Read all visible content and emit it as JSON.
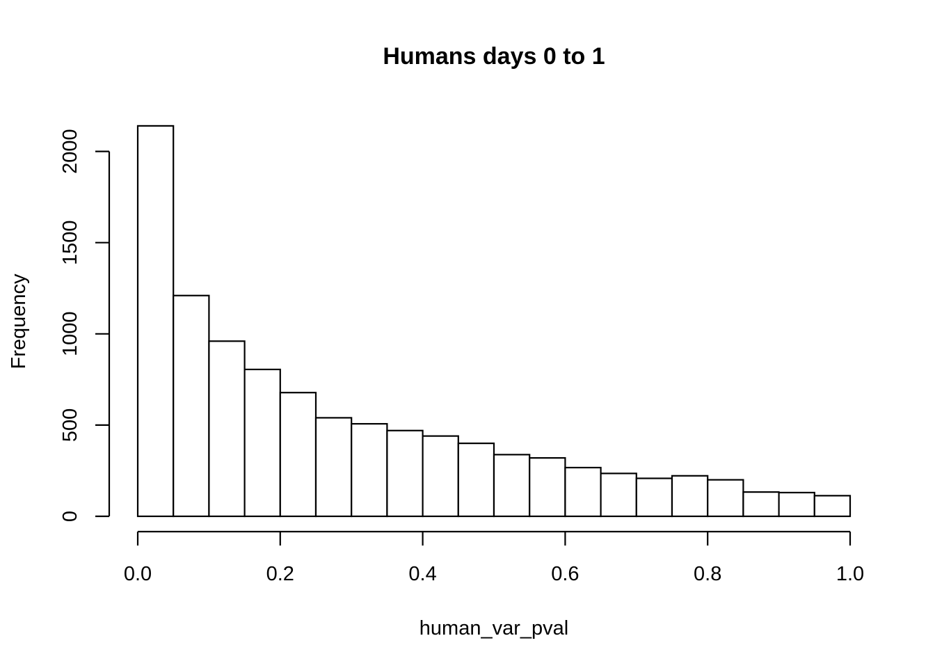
{
  "chart_data": {
    "type": "bar",
    "subtype": "histogram",
    "title": "Humans days 0 to 1",
    "xlabel": "human_var_pval",
    "ylabel": "Frequency",
    "xlim": [
      0,
      1
    ],
    "ylim": [
      0,
      2150
    ],
    "bin_edges": [
      0.0,
      0.05,
      0.1,
      0.15,
      0.2,
      0.25,
      0.3,
      0.35,
      0.4,
      0.45,
      0.5,
      0.55,
      0.6,
      0.65,
      0.7,
      0.75,
      0.8,
      0.85,
      0.9,
      0.95,
      1.0
    ],
    "values": [
      2140,
      1210,
      960,
      805,
      678,
      540,
      507,
      470,
      440,
      400,
      338,
      320,
      267,
      235,
      208,
      222,
      200,
      133,
      130,
      113
    ],
    "x_ticks": [
      0.0,
      0.2,
      0.4,
      0.6,
      0.8,
      1.0
    ],
    "x_tick_labels": [
      "0.0",
      "0.2",
      "0.4",
      "0.6",
      "0.8",
      "1.0"
    ],
    "y_ticks": [
      0,
      500,
      1000,
      1500,
      2000
    ],
    "y_tick_labels": [
      "0",
      "500",
      "1000",
      "1500",
      "2000"
    ],
    "grid": false,
    "colors": {
      "bar_fill": "#ffffff",
      "bar_stroke": "#000000",
      "axis": "#000000"
    }
  }
}
